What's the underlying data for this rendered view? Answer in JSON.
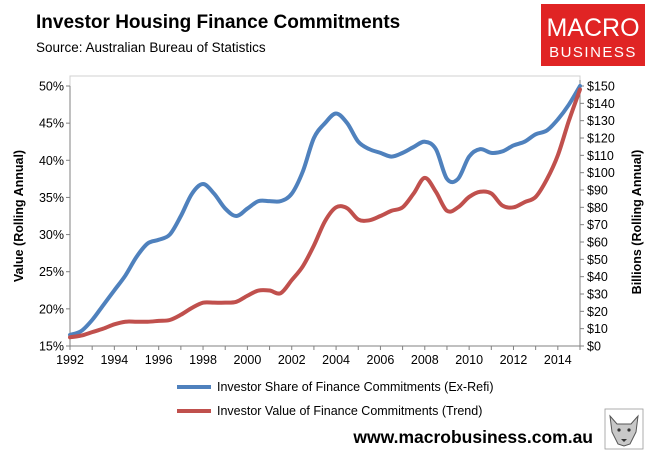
{
  "branding": {
    "logo_line1": "MACRO",
    "logo_line2": "BUSINESS",
    "website": "www.macrobusiness.com.au",
    "logo_color": "#e02424"
  },
  "chart_data": {
    "type": "line",
    "title": "Investor Housing Finance Commitments",
    "subtitle": "Source: Australian Bureau of Statistics",
    "ylabel": "Value (Rolling Annual)",
    "y2label": "Billions (Rolling Annual)",
    "xlim": [
      1992,
      2015
    ],
    "ylim": [
      15,
      50
    ],
    "y2lim": [
      0,
      150
    ],
    "x_ticks": [
      1992,
      1994,
      1996,
      1998,
      2000,
      2002,
      2004,
      2006,
      2008,
      2010,
      2012,
      2014
    ],
    "x_tick_labels": [
      "1992",
      "1994",
      "1996",
      "1998",
      "2000",
      "2002",
      "2004",
      "2006",
      "2008",
      "2010",
      "2012",
      "2014"
    ],
    "y_ticks": [
      15,
      20,
      25,
      30,
      35,
      40,
      45,
      50
    ],
    "y_tick_labels": [
      "15%",
      "20%",
      "25%",
      "30%",
      "35%",
      "40%",
      "45%",
      "50%"
    ],
    "y2_ticks": [
      0,
      10,
      20,
      30,
      40,
      50,
      60,
      70,
      80,
      90,
      100,
      110,
      120,
      130,
      140,
      150
    ],
    "y2_tick_labels": [
      "$0",
      "$10",
      "$20",
      "$30",
      "$40",
      "$50",
      "$60",
      "$70",
      "$80",
      "$90",
      "$100",
      "$110",
      "$120",
      "$130",
      "$140",
      "$150"
    ],
    "grid": false,
    "legend_position": "bottom",
    "series": [
      {
        "name": "Investor Share of Finance Commitments (Ex-Refi)",
        "axis": "left",
        "color": "#4f81bd",
        "x": [
          1992,
          1992.5,
          1993,
          1993.5,
          1994,
          1994.5,
          1995,
          1995.5,
          1996,
          1996.5,
          1997,
          1997.5,
          1998,
          1998.5,
          1999,
          1999.5,
          2000,
          2000.5,
          2001,
          2001.5,
          2002,
          2002.5,
          2003,
          2003.5,
          2004,
          2004.5,
          2005,
          2005.5,
          2006,
          2006.5,
          2007,
          2007.5,
          2008,
          2008.5,
          2009,
          2009.5,
          2010,
          2010.5,
          2011,
          2011.5,
          2012,
          2012.5,
          2013,
          2013.5,
          2014,
          2014.5,
          2015
        ],
        "values": [
          16.5,
          17,
          18.5,
          20.5,
          22.5,
          24.5,
          27,
          28.8,
          29.3,
          30,
          32.5,
          35.5,
          36.8,
          35.5,
          33.5,
          32.5,
          33.5,
          34.5,
          34.5,
          34.5,
          35.5,
          38.5,
          43,
          45,
          46.3,
          45,
          42.5,
          41.5,
          41,
          40.5,
          41,
          41.8,
          42.5,
          41.5,
          37.5,
          37.5,
          40.5,
          41.5,
          41,
          41.2,
          42,
          42.5,
          43.5,
          44,
          45.5,
          47.5,
          50
        ]
      },
      {
        "name": "Investor Value of Finance Commitments (Trend)",
        "axis": "right",
        "color": "#c0504d",
        "x": [
          1992,
          1992.5,
          1993,
          1993.5,
          1994,
          1994.5,
          1995,
          1995.5,
          1996,
          1996.5,
          1997,
          1997.5,
          1998,
          1998.5,
          1999,
          1999.5,
          2000,
          2000.5,
          2001,
          2001.5,
          2002,
          2002.5,
          2003,
          2003.5,
          2004,
          2004.5,
          2005,
          2005.5,
          2006,
          2006.5,
          2007,
          2007.5,
          2008,
          2008.5,
          2009,
          2009.5,
          2010,
          2010.5,
          2011,
          2011.5,
          2012,
          2012.5,
          2013,
          2013.5,
          2014,
          2014.5,
          2015
        ],
        "values": [
          5,
          6,
          8,
          10,
          12.5,
          14,
          14,
          14,
          14.5,
          15,
          18,
          22,
          25,
          25,
          25,
          25.5,
          29,
          32,
          32,
          30.5,
          38,
          46,
          58,
          72,
          80,
          79.5,
          73,
          72.5,
          75,
          78,
          80,
          88,
          97,
          89,
          78,
          80,
          86,
          89,
          88,
          81,
          80,
          83,
          86,
          96,
          110,
          130,
          148
        ]
      }
    ]
  }
}
